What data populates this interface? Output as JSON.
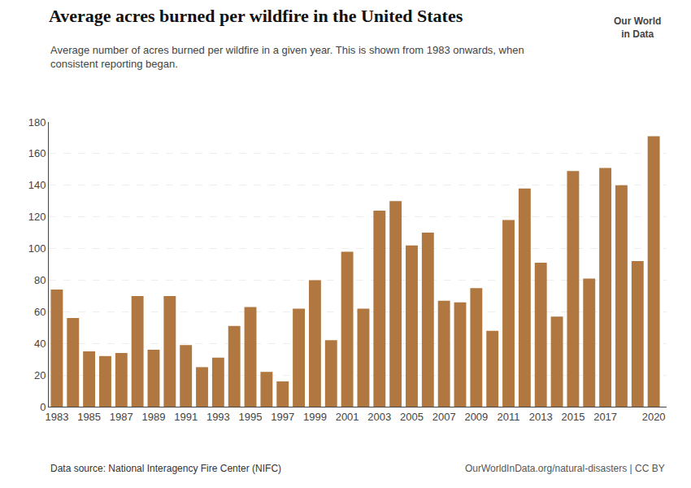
{
  "chart_data": {
    "type": "bar",
    "title": "Average acres burned per wildfire in the United States",
    "subtitle": "Average number of acres burned per wildfire in a given year. This is shown from 1983 onwards, when\nconsistent reporting began.",
    "x": [
      1983,
      1984,
      1985,
      1986,
      1987,
      1988,
      1989,
      1990,
      1991,
      1992,
      1993,
      1994,
      1995,
      1996,
      1997,
      1998,
      1999,
      2000,
      2001,
      2002,
      2003,
      2004,
      2005,
      2006,
      2007,
      2008,
      2009,
      2010,
      2011,
      2012,
      2013,
      2014,
      2015,
      2016,
      2017,
      2018,
      2019,
      2020
    ],
    "values": [
      74,
      56,
      35,
      32,
      34,
      70,
      36,
      70,
      39,
      25,
      31,
      51,
      63,
      22,
      16,
      62,
      80,
      42,
      98,
      62,
      124,
      130,
      102,
      110,
      67,
      66,
      75,
      48,
      118,
      138,
      91,
      57,
      149,
      81,
      151,
      140,
      92,
      171
    ],
    "color": "#b07840",
    "xlim": [
      1982.5,
      2020.8
    ],
    "xticks": [
      1983,
      1985,
      1987,
      1989,
      1991,
      1993,
      1995,
      1997,
      1999,
      2001,
      2003,
      2005,
      2007,
      2009,
      2011,
      2013,
      2015,
      2017,
      2020
    ],
    "ylim": [
      0,
      180
    ],
    "yticks": [
      0,
      20,
      40,
      60,
      80,
      100,
      120,
      140,
      160,
      180
    ],
    "grid": true,
    "annotations": [
      "Data source: National Interagency Fire Center (NIFC)",
      "OurWorldInData.org/natural-disasters | CC BY",
      "Our World\nin Data"
    ]
  }
}
